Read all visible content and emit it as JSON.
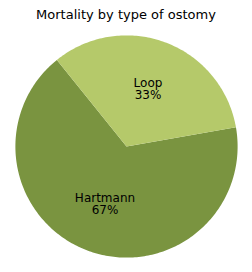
{
  "chart_data": {
    "type": "pie",
    "title": "Mortality by type of ostomy",
    "categories": [
      "Hartmann",
      "Loop"
    ],
    "values": [
      67,
      33
    ],
    "value_labels": [
      "67%",
      "33%"
    ],
    "data_labels": true,
    "colors": [
      "#7a9440",
      "#b5c96a"
    ]
  }
}
